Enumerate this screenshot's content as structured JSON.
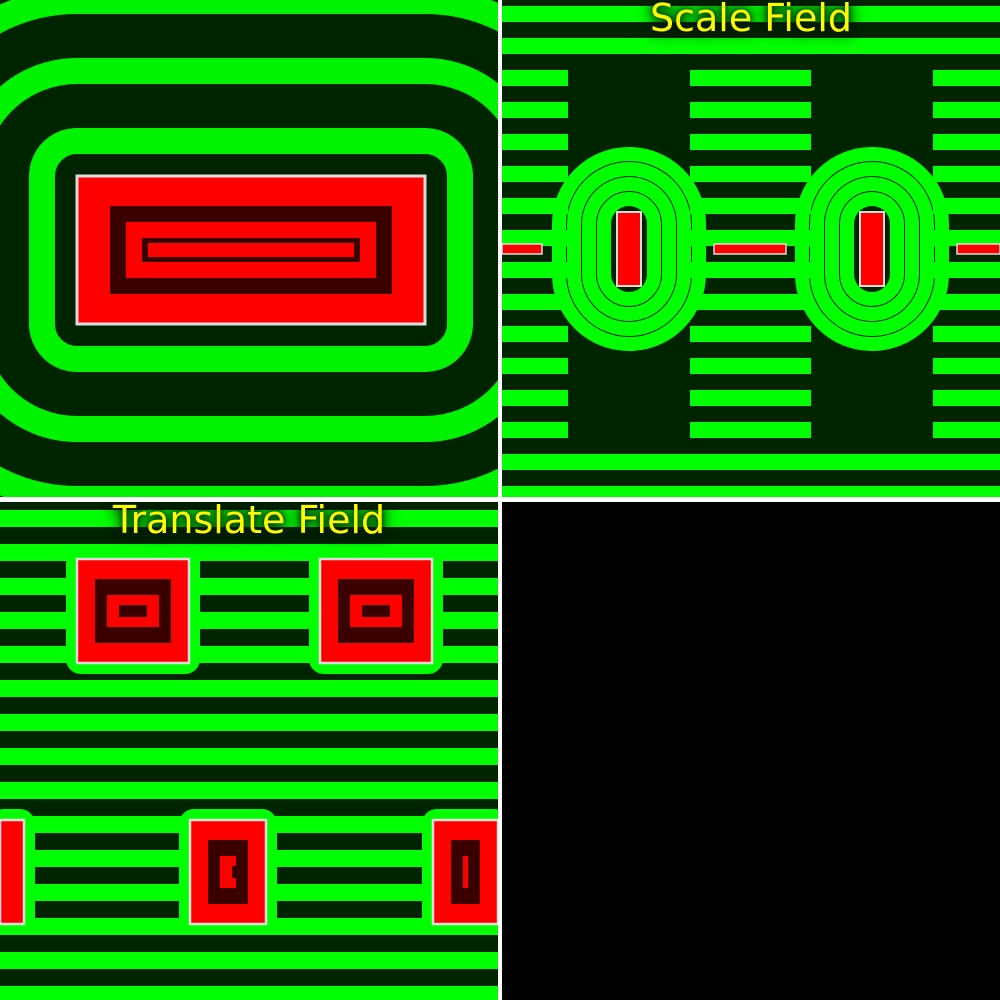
{
  "panels": {
    "scale_field": {
      "title": "Scale Field"
    },
    "translate_field": {
      "title": "Translate Field"
    }
  },
  "colors": {
    "green": "#00ff00",
    "dark_green": "#002400",
    "red": "#ff0000",
    "dark_red": "#3a0000",
    "outline": "#dddddd",
    "title": "#ffff00",
    "empty_panel": "#000000"
  }
}
